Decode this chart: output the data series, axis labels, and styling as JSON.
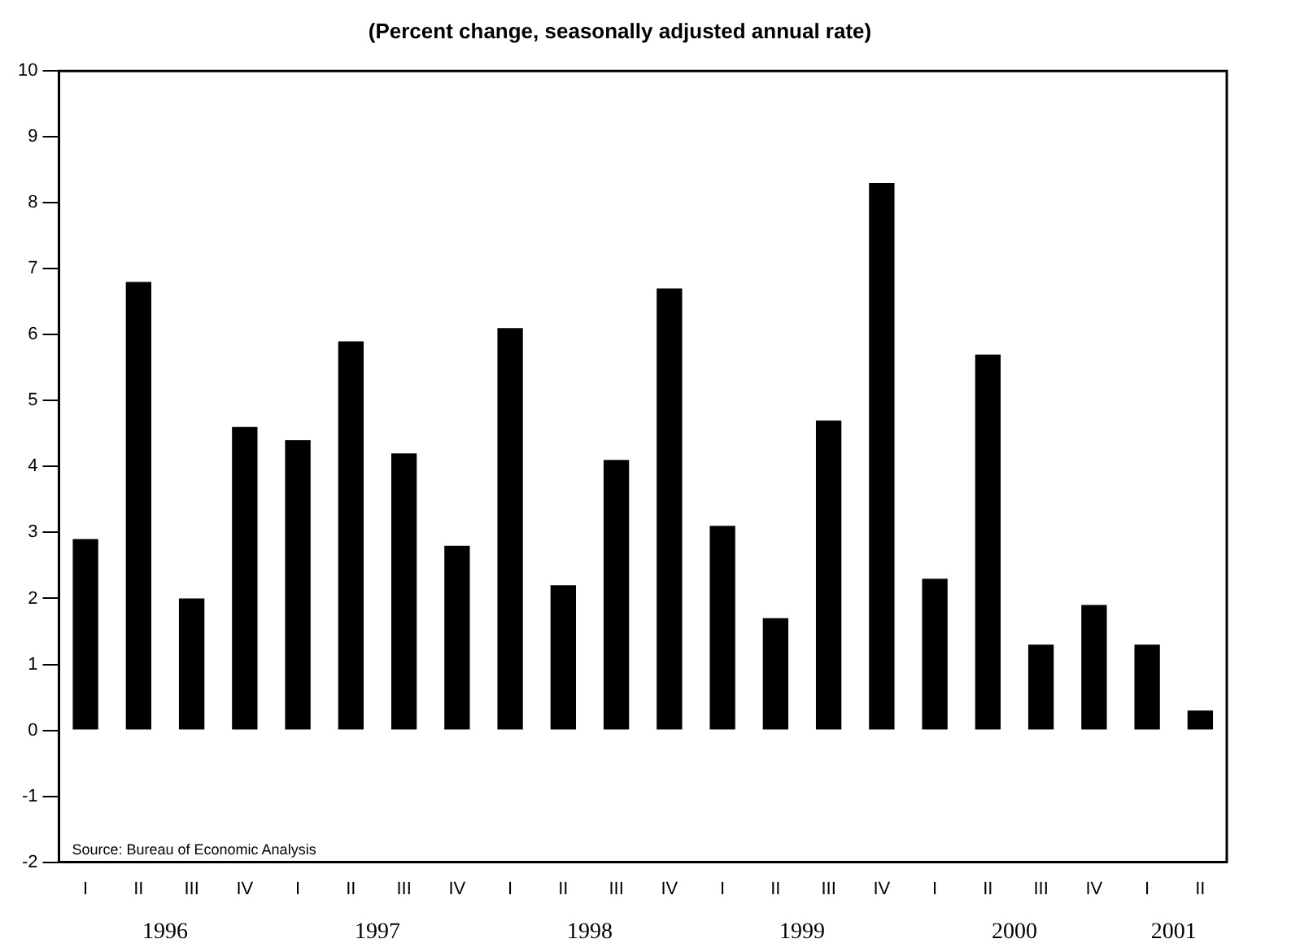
{
  "chart_data": {
    "type": "bar",
    "title": "(Percent change, seasonally adjusted annual rate)",
    "categories": [
      "I",
      "II",
      "III",
      "IV",
      "I",
      "II",
      "III",
      "IV",
      "I",
      "II",
      "III",
      "IV",
      "I",
      "II",
      "III",
      "IV",
      "I",
      "II",
      "III",
      "IV",
      "I",
      "II"
    ],
    "values": [
      2.9,
      6.8,
      2.0,
      4.6,
      4.4,
      5.9,
      4.2,
      2.8,
      6.1,
      2.2,
      4.1,
      6.7,
      3.1,
      1.7,
      4.7,
      8.3,
      2.3,
      5.7,
      1.3,
      1.9,
      1.3,
      0.3
    ],
    "color": "#000000",
    "ylim": [
      -2,
      10
    ],
    "yticks": [
      -2,
      -1,
      0,
      1,
      2,
      3,
      4,
      5,
      6,
      7,
      8,
      9,
      10
    ],
    "grid": false,
    "legend": false,
    "annotations": [
      "Source: Bureau of Economic Analysis",
      "1996",
      "1997",
      "1998",
      "1999",
      "2000",
      "2001"
    ]
  }
}
